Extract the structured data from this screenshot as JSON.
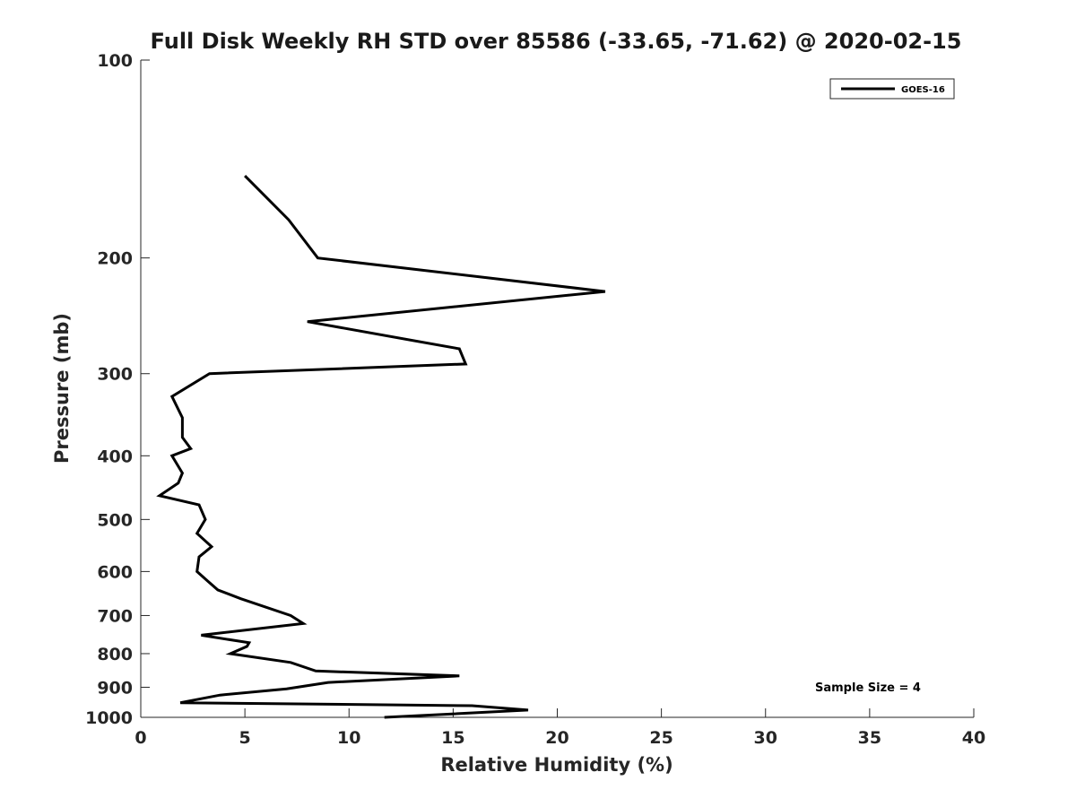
{
  "chart_data": {
    "type": "line",
    "title": "Full Disk Weekly RH STD over 85586 (-33.65, -71.62) @ 2020-02-15",
    "xlabel": "Relative Humidity (%)",
    "ylabel": "Pressure (mb)",
    "xlim": [
      0,
      40
    ],
    "ylim": [
      100,
      1000
    ],
    "y_scale": "log",
    "y_reversed": true,
    "grid": false,
    "legend_position": "top-right",
    "x_ticks": [
      "0",
      "5",
      "10",
      "15",
      "20",
      "25",
      "30",
      "35",
      "40"
    ],
    "y_ticks": [
      "100",
      "200",
      "300",
      "400",
      "500",
      "600",
      "700",
      "800",
      "900",
      "1000"
    ],
    "annotation": "Sample Size = 4",
    "series": [
      {
        "name": "GOES-16",
        "color": "#000000",
        "points": [
          [
            5.0,
            150
          ],
          [
            7.1,
            175
          ],
          [
            8.5,
            200
          ],
          [
            22.3,
            225
          ],
          [
            8.0,
            250
          ],
          [
            15.3,
            275
          ],
          [
            15.6,
            290
          ],
          [
            3.3,
            300
          ],
          [
            1.5,
            325
          ],
          [
            2.0,
            350
          ],
          [
            2.0,
            375
          ],
          [
            2.4,
            390
          ],
          [
            1.5,
            400
          ],
          [
            2.0,
            425
          ],
          [
            1.8,
            440
          ],
          [
            0.9,
            460
          ],
          [
            2.8,
            475
          ],
          [
            3.1,
            500
          ],
          [
            2.7,
            525
          ],
          [
            3.4,
            550
          ],
          [
            2.8,
            570
          ],
          [
            2.7,
            600
          ],
          [
            3.2,
            620
          ],
          [
            3.7,
            640
          ],
          [
            4.8,
            660
          ],
          [
            7.2,
            700
          ],
          [
            7.8,
            720
          ],
          [
            2.9,
            750
          ],
          [
            5.2,
            770
          ],
          [
            5.1,
            780
          ],
          [
            4.3,
            800
          ],
          [
            7.2,
            825
          ],
          [
            8.4,
            850
          ],
          [
            15.3,
            865
          ],
          [
            9.0,
            885
          ],
          [
            7.0,
            905
          ],
          [
            3.8,
            925
          ],
          [
            1.9,
            950
          ],
          [
            15.9,
            960
          ],
          [
            18.6,
            975
          ],
          [
            11.7,
            1000
          ]
        ]
      }
    ]
  }
}
